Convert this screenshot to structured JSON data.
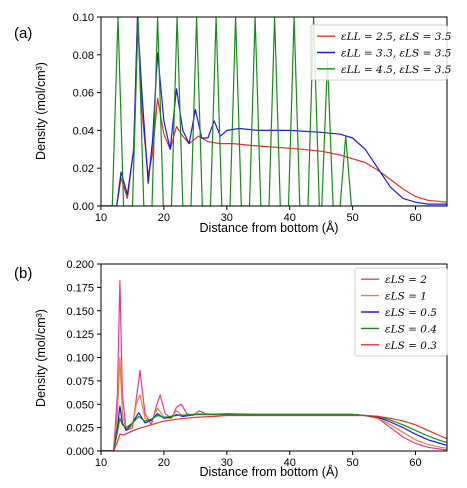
{
  "chart_data": [
    {
      "panel_label": "(a)",
      "type": "line",
      "xlabel": "Distance from bottom (Å)",
      "ylabel": "Density (mol/cm³)",
      "xlim": [
        10,
        65
      ],
      "ylim": [
        0.0,
        0.1
      ],
      "xticks": [
        "10",
        "20",
        "30",
        "40",
        "50",
        "60"
      ],
      "yticks": [
        "0.00",
        "0.02",
        "0.04",
        "0.06",
        "0.08",
        "0.10"
      ],
      "legend_position": "upper-right",
      "series": [
        {
          "name": "εLL = 2.5, εLS = 3.5",
          "color": "#e8302a",
          "x": [
            10,
            12.5,
            13.2,
            14.2,
            15.2,
            15.8,
            16.5,
            17.5,
            18.2,
            19.0,
            20.0,
            21.0,
            22.0,
            23.0,
            24.0,
            25.5,
            27.0,
            29.0,
            31.0,
            34.0,
            38.0,
            42.0,
            45.0,
            48.0,
            50.0,
            52.0,
            54.0,
            56.0,
            58.0,
            60.0,
            62.0,
            65.0
          ],
          "y": [
            0.0,
            0.0,
            0.015,
            0.004,
            0.03,
            0.1,
            0.05,
            0.016,
            0.028,
            0.057,
            0.038,
            0.03,
            0.042,
            0.037,
            0.033,
            0.037,
            0.034,
            0.033,
            0.033,
            0.032,
            0.031,
            0.03,
            0.029,
            0.027,
            0.025,
            0.023,
            0.019,
            0.014,
            0.009,
            0.005,
            0.003,
            0.002
          ]
        },
        {
          "name": "εLL = 3.3, εLS = 3.5",
          "color": "#1b1bd6",
          "x": [
            10,
            12.5,
            13.2,
            14.2,
            15.2,
            15.8,
            16.5,
            17.5,
            18.2,
            19.0,
            20.0,
            21.0,
            22.0,
            23.0,
            24.0,
            25.0,
            26.0,
            27.0,
            28.0,
            29.0,
            30.0,
            32.0,
            35.0,
            40.0,
            45.0,
            48.0,
            50.0,
            52.0,
            54.0,
            56.0,
            58.0,
            60.0,
            62.0,
            65.0
          ],
          "y": [
            0.0,
            0.0,
            0.018,
            0.006,
            0.03,
            0.1,
            0.06,
            0.012,
            0.035,
            0.081,
            0.045,
            0.03,
            0.062,
            0.04,
            0.033,
            0.051,
            0.036,
            0.036,
            0.045,
            0.037,
            0.04,
            0.041,
            0.04,
            0.04,
            0.039,
            0.038,
            0.036,
            0.03,
            0.02,
            0.01,
            0.004,
            0.002,
            0.001,
            0.001
          ]
        },
        {
          "name": "εLL = 4.5, εLS = 3.5",
          "color": "#1a8a1a",
          "peaks_x": [
            12.7,
            15.9,
            19.0,
            22.1,
            25.2,
            28.3,
            31.4,
            34.5,
            37.6,
            40.7,
            43.8,
            46.0,
            48.9
          ],
          "peaks_y": [
            0.1,
            0.1,
            0.1,
            0.1,
            0.1,
            0.1,
            0.1,
            0.1,
            0.1,
            0.1,
            0.1,
            0.077,
            0.037
          ]
        }
      ]
    },
    {
      "panel_label": "(b)",
      "type": "line",
      "xlabel": "Distance from bottom (Å)",
      "ylabel": "Density (mol/cm³)",
      "xlim": [
        10,
        65
      ],
      "ylim": [
        0.0,
        0.2
      ],
      "xticks": [
        "10",
        "20",
        "30",
        "40",
        "50",
        "60"
      ],
      "yticks": [
        "0.000",
        "0.025",
        "0.050",
        "0.075",
        "0.100",
        "0.125",
        "0.150",
        "0.175",
        "0.200"
      ],
      "legend_position": "upper-right",
      "series": [
        {
          "name": "εLS = 2",
          "color": "#e0399b",
          "x": [
            10,
            12.0,
            12.6,
            13.0,
            13.4,
            14.0,
            15.0,
            15.6,
            16.2,
            17.0,
            18.0,
            18.8,
            19.4,
            20.2,
            21.2,
            22.0,
            22.8,
            23.6,
            24.6,
            25.6,
            27.0,
            30,
            35,
            40,
            45,
            50,
            52,
            54,
            56,
            58,
            60,
            62,
            64,
            65
          ],
          "y": [
            0,
            0,
            0.06,
            0.182,
            0.06,
            0.022,
            0.025,
            0.055,
            0.086,
            0.04,
            0.028,
            0.048,
            0.06,
            0.04,
            0.035,
            0.047,
            0.05,
            0.04,
            0.038,
            0.043,
            0.039,
            0.04,
            0.039,
            0.039,
            0.039,
            0.039,
            0.038,
            0.035,
            0.025,
            0.015,
            0.008,
            0.004,
            0.002,
            0.001
          ]
        },
        {
          "name": "εLS = 1",
          "color": "#e8852a",
          "x": [
            10,
            12.0,
            12.6,
            13.0,
            13.4,
            14.0,
            15.0,
            15.6,
            16.2,
            17.0,
            18.0,
            19.0,
            20.0,
            21.0,
            22.0,
            23.0,
            24.0,
            25.0,
            30,
            35,
            40,
            45,
            50,
            52,
            54,
            56,
            58,
            60,
            62,
            64,
            65
          ],
          "y": [
            0,
            0,
            0.04,
            0.1,
            0.04,
            0.022,
            0.028,
            0.05,
            0.06,
            0.035,
            0.032,
            0.046,
            0.036,
            0.035,
            0.043,
            0.037,
            0.038,
            0.04,
            0.039,
            0.039,
            0.039,
            0.039,
            0.039,
            0.038,
            0.035,
            0.028,
            0.02,
            0.012,
            0.007,
            0.004,
            0.003
          ]
        },
        {
          "name": "εLS = 0.5",
          "color": "#1b1bd6",
          "x": [
            10,
            12.0,
            12.6,
            13.0,
            13.4,
            14.0,
            15.0,
            16.0,
            17.0,
            18.0,
            19.0,
            20.0,
            21.0,
            22.0,
            23.0,
            25.0,
            30,
            35,
            40,
            45,
            50,
            52,
            54,
            56,
            58,
            60,
            62,
            64,
            65
          ],
          "y": [
            0,
            0,
            0.025,
            0.048,
            0.03,
            0.022,
            0.03,
            0.041,
            0.03,
            0.033,
            0.04,
            0.035,
            0.036,
            0.039,
            0.037,
            0.039,
            0.039,
            0.039,
            0.039,
            0.039,
            0.039,
            0.038,
            0.036,
            0.031,
            0.025,
            0.018,
            0.012,
            0.008,
            0.006
          ]
        },
        {
          "name": "εLS = 0.4",
          "color": "#1a8a1a",
          "x": [
            10,
            12.0,
            12.6,
            13.0,
            13.4,
            14.0,
            15.0,
            16.0,
            17.0,
            18.0,
            19.0,
            20.0,
            22.0,
            25.0,
            30,
            35,
            40,
            45,
            50,
            52,
            54,
            56,
            58,
            60,
            62,
            64,
            65
          ],
          "y": [
            0,
            0,
            0.02,
            0.035,
            0.028,
            0.025,
            0.03,
            0.037,
            0.032,
            0.034,
            0.038,
            0.036,
            0.038,
            0.039,
            0.039,
            0.039,
            0.039,
            0.039,
            0.039,
            0.038,
            0.037,
            0.033,
            0.028,
            0.022,
            0.016,
            0.011,
            0.009
          ]
        },
        {
          "name": "εLS = 0.3",
          "color": "#e8302a",
          "x": [
            10,
            12.0,
            12.6,
            13.0,
            13.6,
            14.5,
            16.0,
            18.0,
            20.0,
            22.0,
            25.0,
            28.0,
            30,
            35,
            40,
            45,
            50,
            52,
            54,
            56,
            58,
            60,
            62,
            64,
            65
          ],
          "y": [
            0,
            0,
            0.01,
            0.018,
            0.017,
            0.02,
            0.024,
            0.028,
            0.032,
            0.034,
            0.036,
            0.037,
            0.038,
            0.038,
            0.038,
            0.038,
            0.038,
            0.038,
            0.037,
            0.035,
            0.032,
            0.028,
            0.022,
            0.016,
            0.013
          ]
        }
      ]
    }
  ]
}
